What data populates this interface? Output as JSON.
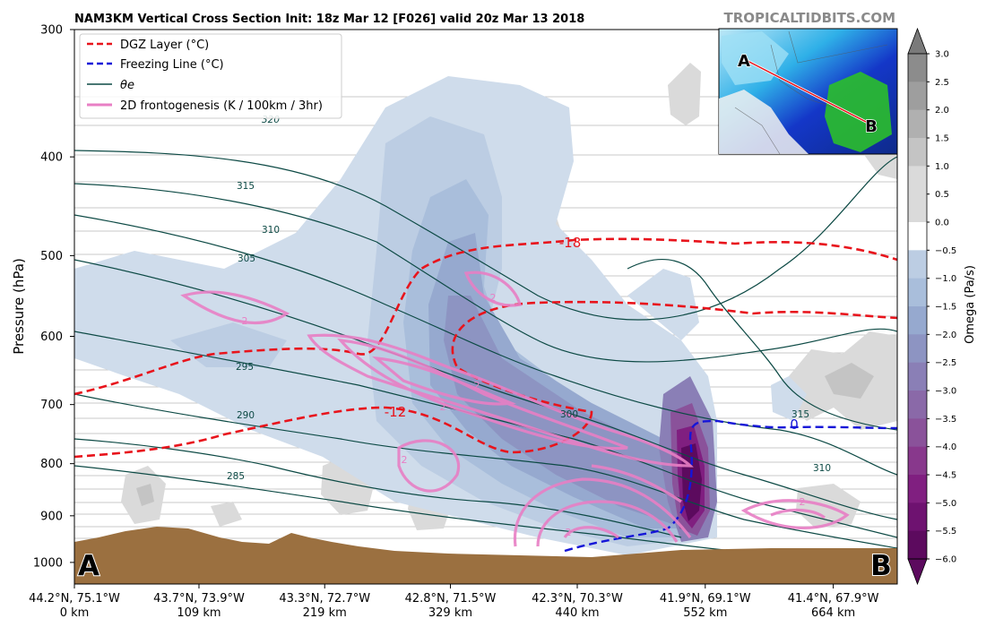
{
  "header": {
    "title": "NAM3KM Vertical Cross Section Init: 18z Mar 12 [F026] valid 20z Mar 13 2018",
    "source": "TROPICALTIDBITS.COM"
  },
  "chart_data": {
    "type": "contour",
    "ylabel": "Pressure (hPa)",
    "y_axis": {
      "ticks": [
        300,
        400,
        500,
        600,
        700,
        800,
        900,
        1000
      ],
      "ylim": [
        1050,
        300
      ],
      "scale": "log",
      "inverted": true
    },
    "x_axis": {
      "ticks": [
        {
          "location": "44.2°N, 75.1°W",
          "distance": "0 km",
          "km": 0
        },
        {
          "location": "43.7°N, 73.9°W",
          "distance": "109 km",
          "km": 109
        },
        {
          "location": "43.3°N, 72.7°W",
          "distance": "219 km",
          "km": 219
        },
        {
          "location": "42.8°N, 71.5°W",
          "distance": "329 km",
          "km": 329
        },
        {
          "location": "42.3°N, 70.3°W",
          "distance": "440 km",
          "km": 440
        },
        {
          "location": "41.9°N, 69.1°W",
          "distance": "552 km",
          "km": 552
        },
        {
          "location": "41.4°N, 67.9°W",
          "distance": "664 km",
          "km": 664
        }
      ],
      "xlim": [
        0,
        720
      ]
    },
    "legend": {
      "position": "top-left",
      "entries": [
        {
          "label": "DGZ Layer (°C)",
          "color": "#e8141c",
          "style": "dashed"
        },
        {
          "label": "Freezing Line (°C)",
          "color": "#1515d8",
          "style": "dashed"
        },
        {
          "label": "θe",
          "color": "#0d4a45",
          "style": "solid"
        },
        {
          "label": "2D frontogenesis (K / 100km / 3hr)",
          "color": "#e87fc5",
          "style": "solid"
        }
      ]
    },
    "theta_e_labels": [
      "320",
      "315",
      "310",
      "305",
      "295",
      "290",
      "285",
      "300",
      "310",
      "315"
    ],
    "dgz_labels": [
      "-18",
      "-12"
    ],
    "freezing_label": "0",
    "fronto_labels": [
      "2",
      "2",
      "2",
      "2",
      "2",
      "2",
      "2"
    ],
    "endpoints": {
      "start": "A",
      "end": "B"
    },
    "colorbar": {
      "label": "Omega (Pa/s)",
      "ticks": [
        "3.0",
        "2.5",
        "2.0",
        "1.5",
        "1.0",
        "0.5",
        "0.0",
        "−0.5",
        "−1.0",
        "−1.5",
        "−2.0",
        "−2.5",
        "−3.0",
        "−3.5",
        "−4.0",
        "−4.5",
        "−5.0",
        "−5.5",
        "−6.0"
      ],
      "colors": [
        "#7a7a7a",
        "#8c8c8c",
        "#9e9e9e",
        "#b0b0b0",
        "#c4c4c4",
        "#dadada",
        "#ffffff",
        "#cfdceb",
        "#bccde3",
        "#a9bedb",
        "#96a9cf",
        "#8d94c2",
        "#8a7fb6",
        "#8a69a8",
        "#8a529a",
        "#88388c",
        "#801f80",
        "#6e1270",
        "#5c0a5e"
      ],
      "range": [
        -6.0,
        3.0
      ]
    },
    "inset_map": {
      "labels": [
        "A",
        "B"
      ]
    }
  }
}
